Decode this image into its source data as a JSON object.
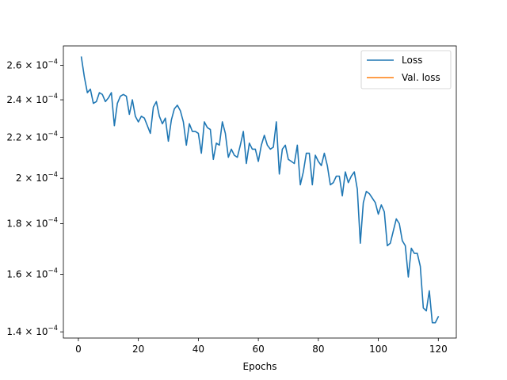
{
  "chart_data": {
    "type": "line",
    "title": "",
    "xlabel": "Epochs",
    "ylabel": "",
    "y_scale": "log",
    "xlim": [
      -5,
      126
    ],
    "ylim": [
      0.000138,
      0.000272
    ],
    "grid": false,
    "legend_placement": "top-right",
    "x_ticks": [
      0,
      20,
      40,
      60,
      80,
      100,
      120
    ],
    "x_tick_labels": [
      "0",
      "20",
      "40",
      "60",
      "80",
      "100",
      "120"
    ],
    "y_ticks": [
      0.00014,
      0.00016,
      0.00018,
      0.0002,
      0.00022,
      0.00024,
      0.00026
    ],
    "y_tick_labels": [
      {
        "mantissa": "1.4",
        "exponent": "−4"
      },
      {
        "mantissa": "1.6",
        "exponent": "−4"
      },
      {
        "mantissa": "1.8",
        "exponent": "−4"
      },
      {
        "mantissa": "2",
        "exponent": "−4"
      },
      {
        "mantissa": "2.2",
        "exponent": "−4"
      },
      {
        "mantissa": "2.4",
        "exponent": "−4"
      },
      {
        "mantissa": "2.6",
        "exponent": "−4"
      }
    ],
    "y_tick_base": "10",
    "series": [
      {
        "name": "Loss",
        "color": "#1f77b4",
        "x": [
          1,
          2,
          3,
          4,
          5,
          6,
          7,
          8,
          9,
          10,
          11,
          12,
          13,
          14,
          15,
          16,
          17,
          18,
          19,
          20,
          21,
          22,
          23,
          24,
          25,
          26,
          27,
          28,
          29,
          30,
          31,
          32,
          33,
          34,
          35,
          36,
          37,
          38,
          39,
          40,
          41,
          42,
          43,
          44,
          45,
          46,
          47,
          48,
          49,
          50,
          51,
          52,
          53,
          54,
          55,
          56,
          57,
          58,
          59,
          60,
          61,
          62,
          63,
          64,
          65,
          66,
          67,
          68,
          69,
          70,
          71,
          72,
          73,
          74,
          75,
          76,
          77,
          78,
          79,
          80,
          81,
          82,
          83,
          84,
          85,
          86,
          87,
          88,
          89,
          90,
          91,
          92,
          93,
          94,
          95,
          96,
          97,
          98,
          99,
          100,
          101,
          102,
          103,
          104,
          105,
          106,
          107,
          108,
          109,
          110,
          111,
          112,
          113,
          114,
          115,
          116,
          117,
          118,
          119,
          120
        ],
        "y": [
          0.000265,
          0.000253,
          0.000244,
          0.000246,
          0.000238,
          0.000239,
          0.000244,
          0.000243,
          0.000239,
          0.000241,
          0.000244,
          0.000226,
          0.000238,
          0.000242,
          0.000243,
          0.000242,
          0.000232,
          0.00024,
          0.000231,
          0.000228,
          0.000231,
          0.00023,
          0.000226,
          0.000222,
          0.000236,
          0.000239,
          0.000231,
          0.000227,
          0.00023,
          0.000218,
          0.000229,
          0.000235,
          0.000237,
          0.000234,
          0.000228,
          0.000216,
          0.000227,
          0.000223,
          0.000223,
          0.000222,
          0.000212,
          0.000228,
          0.000225,
          0.000224,
          0.000209,
          0.000217,
          0.000216,
          0.000228,
          0.000222,
          0.00021,
          0.000214,
          0.000211,
          0.00021,
          0.000216,
          0.000223,
          0.000207,
          0.000217,
          0.000214,
          0.000214,
          0.000208,
          0.000216,
          0.000221,
          0.000216,
          0.000214,
          0.000215,
          0.000228,
          0.000202,
          0.000214,
          0.000216,
          0.000209,
          0.000208,
          0.000207,
          0.000216,
          0.000197,
          0.000203,
          0.000212,
          0.000212,
          0.000197,
          0.000211,
          0.000208,
          0.000206,
          0.000212,
          0.000206,
          0.000197,
          0.000198,
          0.000201,
          0.000201,
          0.000192,
          0.000203,
          0.000198,
          0.000201,
          0.000203,
          0.000195,
          0.000172,
          0.000189,
          0.000194,
          0.000193,
          0.000191,
          0.000189,
          0.000184,
          0.000188,
          0.000185,
          0.000171,
          0.000172,
          0.000177,
          0.000182,
          0.00018,
          0.000173,
          0.000171,
          0.000159,
          0.00017,
          0.000168,
          0.000168,
          0.000163,
          0.000148,
          0.000147,
          0.000154,
          0.000143,
          0.000143,
          0.000145
        ]
      },
      {
        "name": "Val. loss",
        "color": "#ff7f0e",
        "x": [],
        "y": []
      }
    ]
  }
}
